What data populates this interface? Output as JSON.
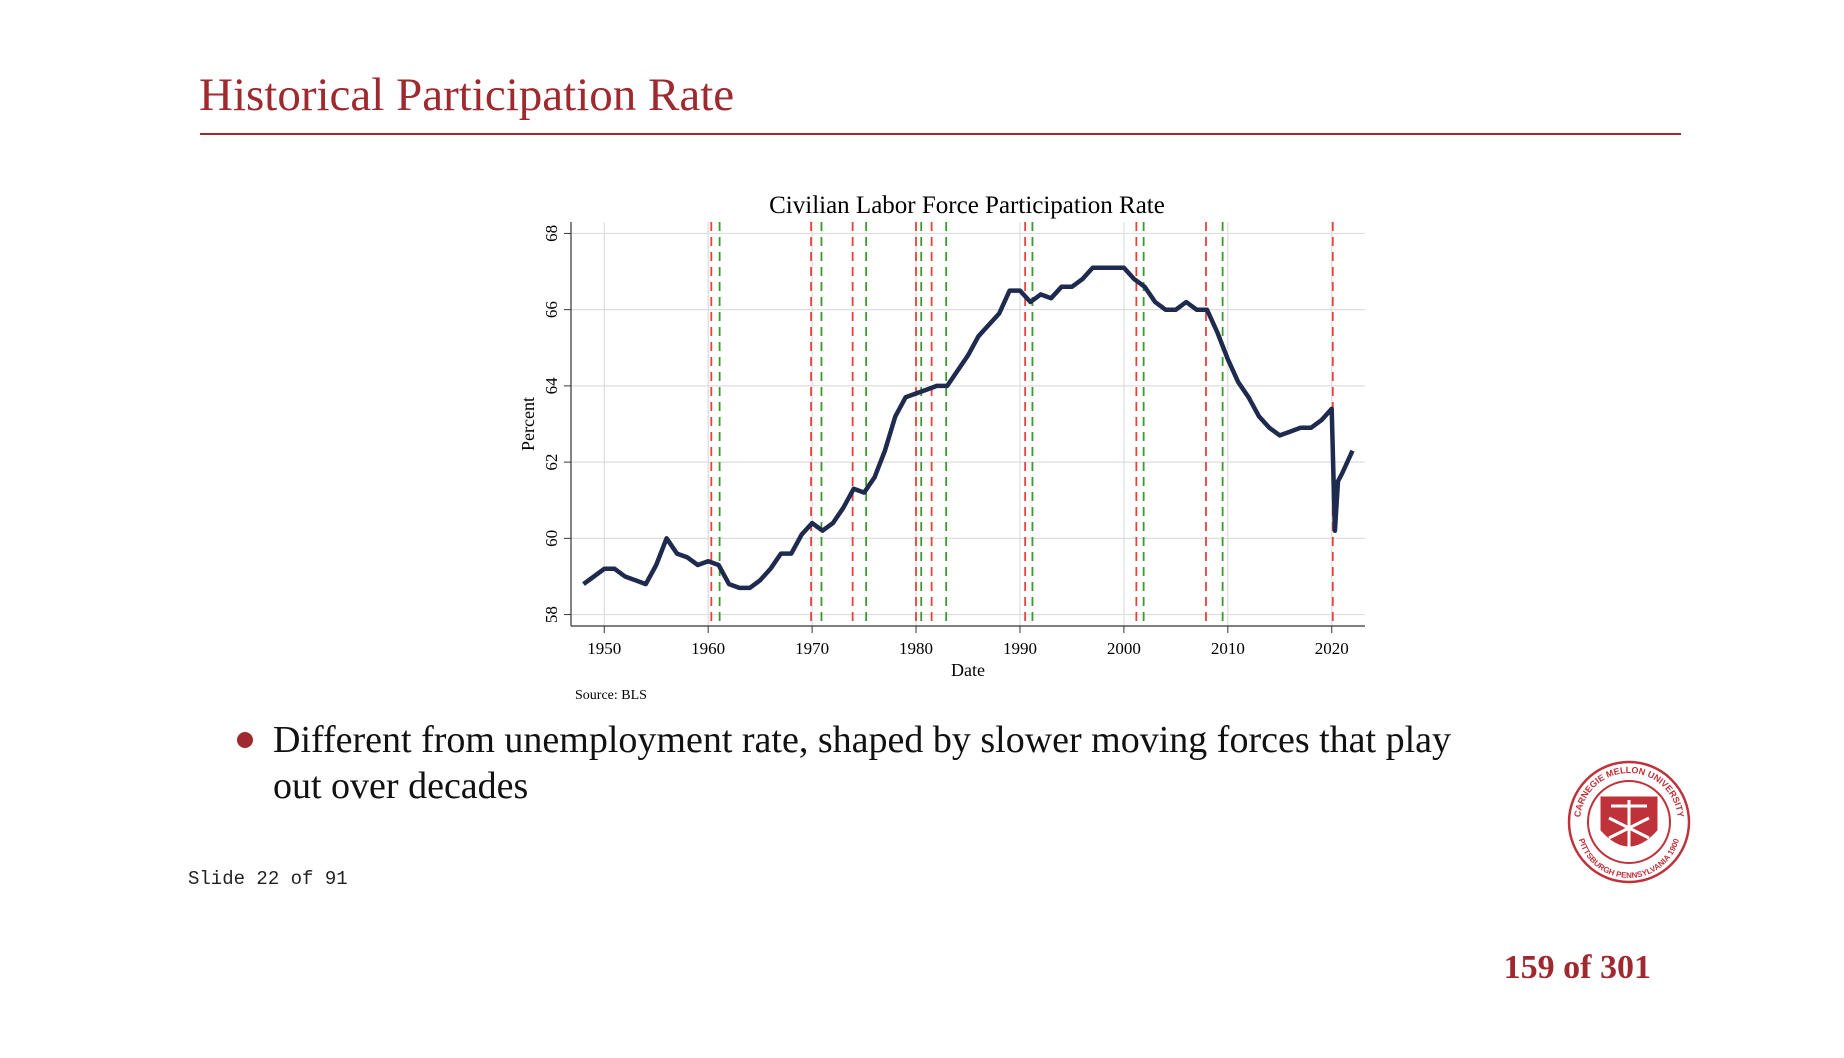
{
  "header": {
    "title": "Historical Participation Rate"
  },
  "chart_data": {
    "type": "line",
    "title": "Civilian Labor Force Participation Rate",
    "x_label": "Date",
    "y_label": "Percent",
    "source": "Source: BLS",
    "x": [
      1948,
      1949,
      1950,
      1951,
      1952,
      1953,
      1954,
      1955,
      1956,
      1957,
      1958,
      1959,
      1960,
      1961,
      1962,
      1963,
      1964,
      1965,
      1966,
      1967,
      1968,
      1969,
      1970,
      1971,
      1972,
      1973,
      1974,
      1975,
      1976,
      1977,
      1978,
      1979,
      1980,
      1981,
      1982,
      1983,
      1984,
      1985,
      1986,
      1987,
      1988,
      1989,
      1990,
      1991,
      1992,
      1993,
      1994,
      1995,
      1996,
      1997,
      1998,
      1999,
      2000,
      2001,
      2002,
      2003,
      2004,
      2005,
      2006,
      2007,
      2008,
      2009,
      2010,
      2011,
      2012,
      2013,
      2014,
      2015,
      2016,
      2017,
      2018,
      2019,
      2020,
      2020.3,
      2020.6,
      2021,
      2022
    ],
    "series": [
      {
        "color": "#1f2a4f",
        "values": [
          58.8,
          59.0,
          59.2,
          59.2,
          59.0,
          58.9,
          58.8,
          59.3,
          60.0,
          59.6,
          59.5,
          59.3,
          59.4,
          59.3,
          58.8,
          58.7,
          58.7,
          58.9,
          59.2,
          59.6,
          59.6,
          60.1,
          60.4,
          60.2,
          60.4,
          60.8,
          61.3,
          61.2,
          61.6,
          62.3,
          63.2,
          63.7,
          63.8,
          63.9,
          64.0,
          64.0,
          64.4,
          64.8,
          65.3,
          65.6,
          65.9,
          66.5,
          66.5,
          66.2,
          66.4,
          66.3,
          66.6,
          66.6,
          66.8,
          67.1,
          67.1,
          67.1,
          67.1,
          66.8,
          66.6,
          66.2,
          66.0,
          66.0,
          66.2,
          66.0,
          66.0,
          65.4,
          64.7,
          64.1,
          63.7,
          63.2,
          62.9,
          62.7,
          62.8,
          62.9,
          62.9,
          63.1,
          63.4,
          60.2,
          61.5,
          61.7,
          62.3
        ]
      }
    ],
    "vlines": [
      {
        "color": "#e8423a",
        "x": [
          1960.3,
          1969.9,
          1973.9,
          1980.0,
          1981.5,
          1990.5,
          2001.2,
          2007.9,
          2020.1
        ]
      },
      {
        "color": "#3a9a2e",
        "x": [
          1961.1,
          1970.9,
          1975.2,
          1980.5,
          1982.9,
          1991.2,
          2001.9,
          2009.5
        ]
      }
    ],
    "xlim": [
      1946.8,
      2023.2
    ],
    "ylim": [
      57.7,
      68.3
    ],
    "xticks": [
      1950,
      1960,
      1970,
      1980,
      1990,
      2000,
      2010,
      2020
    ],
    "yticks": [
      58,
      60,
      62,
      64,
      66,
      68
    ],
    "grid": true
  },
  "bullets": [
    "Different from unemployment rate, shaped by slower moving forces that play",
    "out over decades"
  ],
  "slide_label": "Slide 22 of 91",
  "page_number": "159 of 301",
  "logo": {
    "top": "CARNEGIE MELLON UNIVERSITY",
    "bottom": "PITTSBURGH PENNSYLVANIA 1900"
  }
}
